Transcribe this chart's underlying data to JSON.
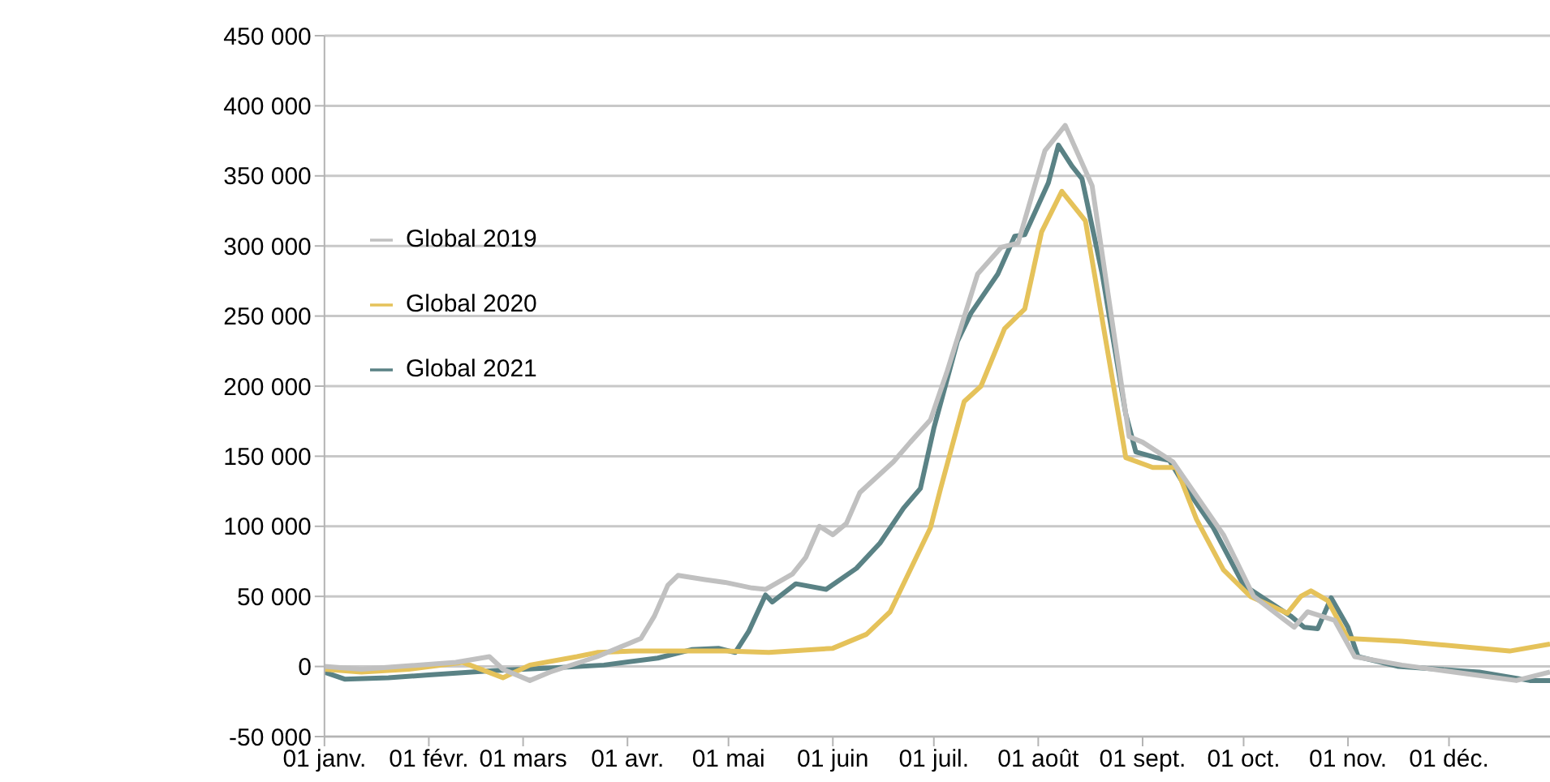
{
  "chart_data": {
    "type": "line",
    "xlim": [
      "--01-01",
      "--12-31"
    ],
    "xticks": [
      {
        "value": "--01-01",
        "label": "01 janv."
      },
      {
        "value": "--02-01",
        "label": "01 févr."
      },
      {
        "value": "--03-01",
        "label": "01 mars"
      },
      {
        "value": "--04-01",
        "label": "01 avr."
      },
      {
        "value": "--05-01",
        "label": "01 mai"
      },
      {
        "value": "--06-01",
        "label": "01 juin"
      },
      {
        "value": "--07-01",
        "label": "01 juil."
      },
      {
        "value": "--08-01",
        "label": "01 août"
      },
      {
        "value": "--09-01",
        "label": "01 sept."
      },
      {
        "value": "--10-01",
        "label": "01 oct."
      },
      {
        "value": "--11-01",
        "label": "01 nov."
      },
      {
        "value": "--12-01",
        "label": "01 déc."
      }
    ],
    "ylim": [
      -50000,
      450000
    ],
    "yticks": [
      {
        "value": -50000,
        "label": "-50 000"
      },
      {
        "value": 0,
        "label": "0"
      },
      {
        "value": 50000,
        "label": "50 000"
      },
      {
        "value": 100000,
        "label": "100 000"
      },
      {
        "value": 150000,
        "label": "150 000"
      },
      {
        "value": 200000,
        "label": "200 000"
      },
      {
        "value": 250000,
        "label": "250 000"
      },
      {
        "value": 300000,
        "label": "300 000"
      },
      {
        "value": 350000,
        "label": "350 000"
      },
      {
        "value": 400000,
        "label": "400 000"
      },
      {
        "value": 450000,
        "label": "450 000"
      }
    ],
    "grid": "y",
    "legend": "top left",
    "marker": "none",
    "line_style": "solid",
    "series": [
      {
        "name": "Global 2021",
        "color": "#5a8285",
        "x": [
          "--01-01",
          "--01-07",
          "--01-20",
          "--02-01",
          "--02-20",
          "--03-10",
          "--03-25",
          "--04-10",
          "--04-20",
          "--04-28",
          "--05-03",
          "--05-07",
          "--05-12",
          "--05-14",
          "--05-21",
          "--05-30",
          "--06-08",
          "--06-15",
          "--06-22",
          "--06-27",
          "--07-01",
          "--07-08",
          "--07-12",
          "--07-20",
          "--07-25",
          "--07-28",
          "--08-04",
          "--08-07",
          "--08-11",
          "--08-14",
          "--08-20",
          "--08-27",
          "--08-30",
          "--09-05",
          "--09-09",
          "--09-14",
          "--09-22",
          "--10-01",
          "--10-15",
          "--10-19",
          "--10-23",
          "--10-27",
          "--11-01",
          "--11-04",
          "--11-16",
          "--12-10",
          "--12-25",
          "--12-31"
        ],
        "values": [
          -4000,
          -9000,
          -8000,
          -6000,
          -3000,
          -1000,
          1000,
          6000,
          12000,
          13000,
          10000,
          25000,
          51000,
          46000,
          59000,
          55000,
          70000,
          88000,
          113000,
          127000,
          170000,
          232000,
          252000,
          280000,
          307000,
          308000,
          345000,
          372000,
          357000,
          348000,
          280000,
          180000,
          153000,
          149000,
          147000,
          127000,
          99000,
          58000,
          36000,
          28000,
          27000,
          49000,
          28000,
          7000,
          0,
          -4000,
          -10000,
          -10000
        ]
      },
      {
        "name": "Global 2020",
        "color": "#e5c25a",
        "x": [
          "--01-01",
          "--01-12",
          "--01-26",
          "--02-11",
          "--02-23",
          "--03-03",
          "--03-17",
          "--03-23",
          "--04-03",
          "--04-30",
          "--05-13",
          "--06-01",
          "--06-11",
          "--06-18",
          "--06-30",
          "--07-03",
          "--07-10",
          "--07-15",
          "--07-22",
          "--07-28",
          "--08-02",
          "--08-08",
          "--08-15",
          "--08-27",
          "--09-04",
          "--09-11",
          "--09-17",
          "--09-25",
          "--10-03",
          "--10-14",
          "--10-18",
          "--10-21",
          "--10-26",
          "--11-01",
          "--11-17",
          "--12-19",
          "--12-31"
        ],
        "values": [
          -2000,
          -4000,
          -2000,
          3000,
          -8000,
          1000,
          7000,
          10000,
          11000,
          11000,
          10000,
          13000,
          23000,
          39000,
          99000,
          127000,
          189000,
          200000,
          241000,
          255000,
          310000,
          339000,
          318000,
          149000,
          142000,
          142000,
          105000,
          69000,
          50000,
          38000,
          50000,
          54000,
          47000,
          20000,
          18000,
          11000,
          16000
        ]
      },
      {
        "name": "Global 2019",
        "color": "#c0c0c0",
        "x": [
          "--01-01",
          "--01-12",
          "--02-09",
          "--02-19",
          "--02-23",
          "--03-03",
          "--03-09",
          "--03-23",
          "--04-01",
          "--04-05",
          "--04-09",
          "--04-13",
          "--04-16",
          "--04-24",
          "--04-30",
          "--05-08",
          "--05-12",
          "--05-20",
          "--05-24",
          "--05-28",
          "--06-01",
          "--06-05",
          "--06-09",
          "--06-19",
          "--06-24",
          "--06-30",
          "--07-05",
          "--07-14",
          "--07-21",
          "--07-26",
          "--08-03",
          "--08-09",
          "--08-17",
          "--08-28",
          "--09-01",
          "--09-10",
          "--09-25",
          "--10-04",
          "--10-16",
          "--10-20",
          "--10-28",
          "--11-03",
          "--11-17",
          "--12-15",
          "--12-21",
          "--12-31"
        ],
        "values": [
          0,
          -2000,
          3000,
          7000,
          -2000,
          -10000,
          -4000,
          7000,
          16000,
          20000,
          36000,
          58000,
          65000,
          62000,
          60000,
          56000,
          55000,
          66000,
          78000,
          100000,
          94000,
          102000,
          124000,
          146000,
          160000,
          176000,
          211000,
          280000,
          299000,
          302000,
          368000,
          386000,
          343000,
          164000,
          160000,
          146000,
          94000,
          50000,
          28000,
          39000,
          33000,
          7000,
          1000,
          -8000,
          -10000,
          -4000
        ]
      }
    ]
  }
}
